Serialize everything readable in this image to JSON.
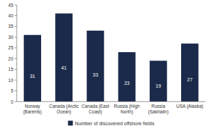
{
  "chart_data": {
    "type": "bar",
    "categories": [
      "Norway\n(Barents)",
      "Canada (Arctic\nOcean)",
      "Canada (East\nCoast)",
      "Russia (High\nNorth)",
      "Russia\n(Sakhalin)",
      "USA (Alaska)"
    ],
    "series": [
      {
        "name": "Number of discovered offshore fields",
        "color": "#1b2a4a",
        "values": [
          31,
          41,
          33,
          23,
          19,
          27
        ]
      }
    ],
    "ylim": [
      0,
      45
    ],
    "yticks": [
      0,
      5,
      10,
      15,
      20,
      25,
      30,
      35,
      40,
      45
    ],
    "grid": false,
    "legend": "bottom",
    "data_labels": true
  }
}
